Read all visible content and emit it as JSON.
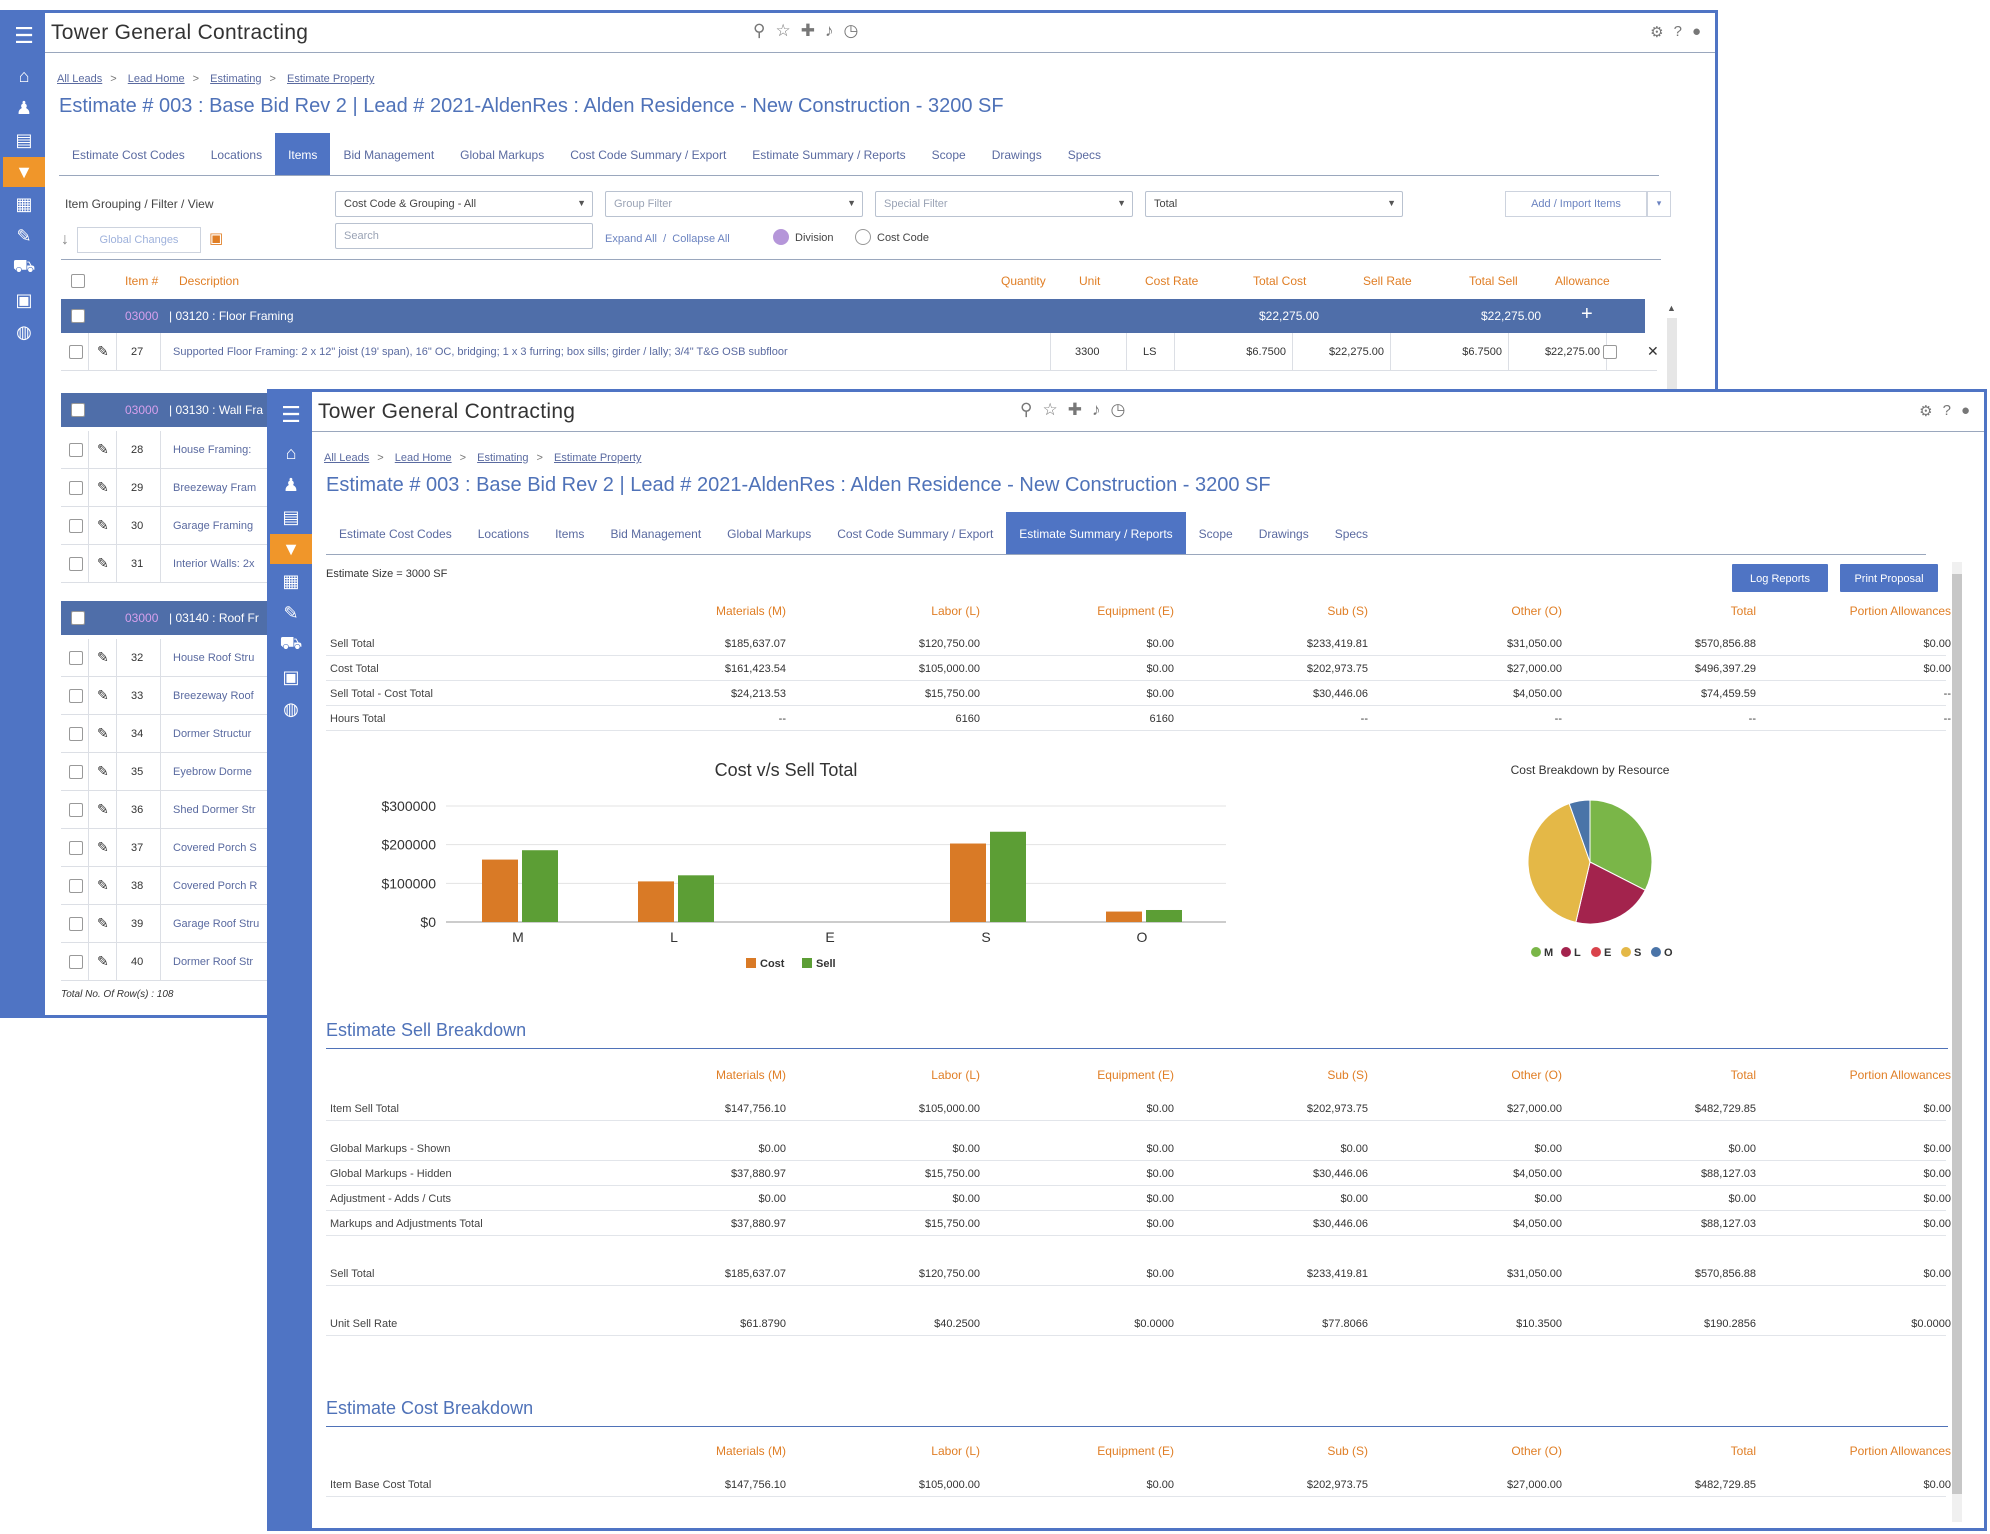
{
  "app_title": "Tower General Contracting",
  "breadcrumb": [
    "All Leads",
    "Lead Home",
    "Estimating",
    "Estimate Property"
  ],
  "page_title": "Estimate # 003 : Base Bid Rev 2  |  Lead # 2021-AldenRes : Alden Residence - New Construction - 3200 SF",
  "tabs": [
    "Estimate Cost Codes",
    "Locations",
    "Items",
    "Bid Management",
    "Global Markups",
    "Cost Code Summary / Export",
    "Estimate Summary / Reports",
    "Scope",
    "Drawings",
    "Specs"
  ],
  "items_window": {
    "filter_label": "Item Grouping / Filter / View",
    "grouping_select": "Cost Code & Grouping - All",
    "group_filter": "Group Filter",
    "special_filter": "Special Filter",
    "total_select": "Total",
    "add_import": "Add / Import Items",
    "global_changes": "Global Changes",
    "search_placeholder": "Search",
    "expand_all": "Expand All",
    "collapse_all": "Collapse All",
    "radio_division": "Division",
    "radio_cost_code": "Cost Code",
    "columns": {
      "item": "Item #",
      "description": "Description",
      "quantity": "Quantity",
      "unit": "Unit",
      "cost_rate": "Cost Rate",
      "total_cost": "Total Cost",
      "sell_rate": "Sell Rate",
      "total_sell": "Total Sell",
      "allowance": "Allowance"
    },
    "group_floor": {
      "code": "03000",
      "name": "|  03120 : Floor Framing",
      "total_cost": "$22,275.00",
      "total_sell": "$22,275.00"
    },
    "floor_item": {
      "num": "27",
      "desc": "Supported Floor Framing: 2 x 12\" joist (19' span), 16\" OC, bridging; 1 x 3 furring; box sills; girder / lally; 3/4\" T&G OSB subfloor",
      "qty": "3300",
      "unit": "LS",
      "cost_rate": "$6.7500",
      "total_cost": "$22,275.00",
      "sell_rate": "$6.7500",
      "total_sell": "$22,275.00"
    },
    "group_wall": {
      "code": "03000",
      "name": "|  03130 : Wall Fra"
    },
    "wall_items": [
      {
        "num": "28",
        "desc": "House Framing:"
      },
      {
        "num": "29",
        "desc": "Breezeway Fram"
      },
      {
        "num": "30",
        "desc": "Garage Framing"
      },
      {
        "num": "31",
        "desc": "Interior Walls: 2x"
      }
    ],
    "group_roof": {
      "code": "03000",
      "name": "|  03140 : Roof Fr"
    },
    "roof_items": [
      {
        "num": "32",
        "desc": "House Roof Stru"
      },
      {
        "num": "33",
        "desc": "Breezeway Roof"
      },
      {
        "num": "34",
        "desc": "Dormer Structur"
      },
      {
        "num": "35",
        "desc": "Eyebrow Dorme"
      },
      {
        "num": "36",
        "desc": "Shed Dormer Str"
      },
      {
        "num": "37",
        "desc": "Covered Porch S"
      },
      {
        "num": "38",
        "desc": "Covered Porch R"
      },
      {
        "num": "39",
        "desc": "Garage Roof Stru"
      },
      {
        "num": "40",
        "desc": "Dormer Roof Str"
      }
    ],
    "total_rows": "Total No. Of Row(s) : 108"
  },
  "summary_window": {
    "estimate_size": "Estimate Size = 3000  SF",
    "log_reports": "Log Reports",
    "print_proposal": "Print Proposal",
    "columns": [
      "Materials (M)",
      "Labor (L)",
      "Equipment (E)",
      "Sub (S)",
      "Other (O)",
      "Total",
      "Portion Allowances"
    ],
    "summary_rows": [
      {
        "label": "Sell Total",
        "values": [
          "$185,637.07",
          "$120,750.00",
          "$0.00",
          "$233,419.81",
          "$31,050.00",
          "$570,856.88",
          "$0.00"
        ]
      },
      {
        "label": "Cost Total",
        "values": [
          "$161,423.54",
          "$105,000.00",
          "$0.00",
          "$202,973.75",
          "$27,000.00",
          "$496,397.29",
          "$0.00"
        ]
      },
      {
        "label": "Sell Total - Cost Total",
        "values": [
          "$24,213.53",
          "$15,750.00",
          "$0.00",
          "$30,446.06",
          "$4,050.00",
          "$74,459.59",
          "--"
        ]
      },
      {
        "label": "Hours Total",
        "values": [
          "--",
          "6160",
          "6160",
          "--",
          "--",
          "--",
          "--"
        ]
      }
    ],
    "sell_breakdown_title": "Estimate Sell Breakdown",
    "sell_rows": [
      {
        "label": "Item Sell Total",
        "values": [
          "$147,756.10",
          "$105,000.00",
          "$0.00",
          "$202,973.75",
          "$27,000.00",
          "$482,729.85",
          "$0.00"
        ]
      },
      {
        "label": "Global Markups - Shown",
        "values": [
          "$0.00",
          "$0.00",
          "$0.00",
          "$0.00",
          "$0.00",
          "$0.00",
          "$0.00"
        ]
      },
      {
        "label": "Global Markups - Hidden",
        "values": [
          "$37,880.97",
          "$15,750.00",
          "$0.00",
          "$30,446.06",
          "$4,050.00",
          "$88,127.03",
          "$0.00"
        ]
      },
      {
        "label": "Adjustment - Adds / Cuts",
        "values": [
          "$0.00",
          "$0.00",
          "$0.00",
          "$0.00",
          "$0.00",
          "$0.00",
          "$0.00"
        ]
      },
      {
        "label": "Markups and Adjustments Total",
        "values": [
          "$37,880.97",
          "$15,750.00",
          "$0.00",
          "$30,446.06",
          "$4,050.00",
          "$88,127.03",
          "$0.00"
        ]
      },
      {
        "label": "Sell Total",
        "values": [
          "$185,637.07",
          "$120,750.00",
          "$0.00",
          "$233,419.81",
          "$31,050.00",
          "$570,856.88",
          "$0.00"
        ]
      },
      {
        "label": "Unit Sell Rate",
        "values": [
          "$61.8790",
          "$40.2500",
          "$0.0000",
          "$77.8066",
          "$10.3500",
          "$190.2856",
          "$0.0000"
        ]
      }
    ],
    "cost_breakdown_title": "Estimate Cost Breakdown",
    "cost_rows": [
      {
        "label": "Item Base Cost Total",
        "values": [
          "$147,756.10",
          "$105,000.00",
          "$0.00",
          "$202,973.75",
          "$27,000.00",
          "$482,729.85",
          "$0.00"
        ]
      }
    ]
  },
  "chart_data": [
    {
      "type": "bar",
      "title": "Cost v/s Sell Total",
      "categories": [
        "M",
        "L",
        "E",
        "S",
        "O"
      ],
      "series": [
        {
          "name": "Cost",
          "values": [
            161423.54,
            105000,
            0,
            202973.75,
            27000
          ],
          "color": "#d97a26"
        },
        {
          "name": "Sell",
          "values": [
            185637.07,
            120750,
            0,
            233419.81,
            31050
          ],
          "color": "#5c9e35"
        }
      ],
      "yticks": [
        "$0",
        "$100000",
        "$200000",
        "$300000"
      ],
      "ylim": [
        0,
        300000
      ],
      "legend": "bottom"
    },
    {
      "type": "pie",
      "title": "Cost Breakdown by Resource",
      "labels": [
        "M",
        "L",
        "E",
        "S",
        "O"
      ],
      "values": [
        161423.54,
        105000,
        0,
        202973.75,
        27000
      ],
      "colors": [
        "#7ab648",
        "#a3234d",
        "#d9434b",
        "#e4b847",
        "#4a74a8"
      ],
      "legend": "bottom"
    }
  ]
}
